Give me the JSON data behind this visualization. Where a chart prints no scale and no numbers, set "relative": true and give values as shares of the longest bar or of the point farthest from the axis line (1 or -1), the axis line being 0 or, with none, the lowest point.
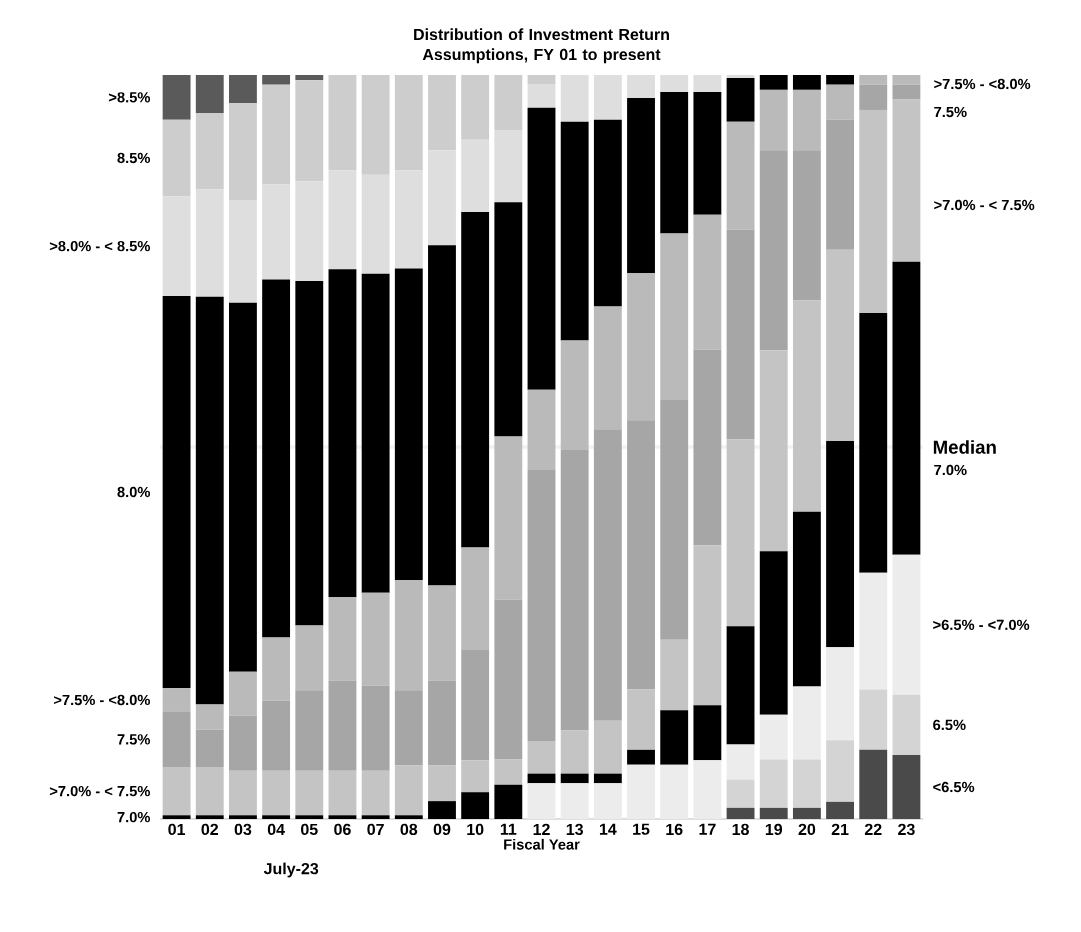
{
  "chart_data": {
    "type": "bar",
    "stacked": true,
    "relative": true,
    "title": "Distribution of Investment Return Assumptions, FY 01 to present",
    "xlabel": "Fiscal Year",
    "categories": [
      "01",
      "02",
      "03",
      "04",
      "05",
      "06",
      "07",
      "08",
      "09",
      "10",
      "11",
      "12",
      "13",
      "14",
      "15",
      "16",
      "17",
      "18",
      "19",
      "20",
      "21",
      "22",
      "23"
    ],
    "series": [
      {
        "name": "<6.5%",
        "color": "#4a4a4a",
        "values": [
          0,
          0,
          0,
          0,
          0,
          0,
          0,
          0,
          0,
          0,
          0,
          0,
          0,
          0,
          0,
          0,
          0,
          0.015,
          0.015,
          0.015,
          0.023,
          0.093,
          0.086
        ]
      },
      {
        "name": "6.5%",
        "color": "#d4d4d4",
        "values": [
          0,
          0,
          0,
          0,
          0,
          0,
          0,
          0,
          0,
          0,
          0,
          0,
          0,
          0,
          0,
          0,
          0,
          0.038,
          0.065,
          0.065,
          0.083,
          0.081,
          0.081
        ]
      },
      {
        "name": ">6.5% - <7.0%",
        "color": "#ececec",
        "values": [
          0,
          0,
          0,
          0,
          0,
          0,
          0,
          0,
          0,
          0,
          0,
          0.048,
          0.048,
          0.048,
          0.073,
          0.073,
          0.079,
          0.047,
          0.06,
          0.098,
          0.125,
          0.157,
          0.188
        ]
      },
      {
        "name": "7.0%",
        "color": "#000000",
        "values": [
          0.005,
          0.005,
          0.005,
          0.005,
          0.005,
          0.005,
          0.005,
          0.005,
          0.024,
          0.036,
          0.046,
          0.013,
          0.013,
          0.013,
          0.02,
          0.073,
          0.074,
          0.159,
          0.22,
          0.235,
          0.277,
          0.349,
          0.394
        ]
      },
      {
        "name": ">7.0% - < 7.5%",
        "color": "#c4c4c4",
        "values": [
          0.065,
          0.065,
          0.06,
          0.06,
          0.06,
          0.06,
          0.06,
          0.067,
          0.048,
          0.043,
          0.034,
          0.044,
          0.058,
          0.071,
          0.081,
          0.095,
          0.215,
          0.251,
          0.27,
          0.284,
          0.257,
          0.273,
          0.218
        ]
      },
      {
        "name": "7.5%",
        "color": "#a6a6a6",
        "values": [
          0.074,
          0.05,
          0.074,
          0.094,
          0.108,
          0.121,
          0.114,
          0.101,
          0.114,
          0.148,
          0.215,
          0.364,
          0.377,
          0.392,
          0.362,
          0.322,
          0.263,
          0.282,
          0.269,
          0.202,
          0.175,
          0.034,
          0.02
        ]
      },
      {
        "name": ">7.5% - <8.0%",
        "color": "#bababa",
        "values": [
          0.032,
          0.034,
          0.059,
          0.085,
          0.087,
          0.112,
          0.125,
          0.148,
          0.128,
          0.138,
          0.219,
          0.108,
          0.147,
          0.165,
          0.198,
          0.224,
          0.181,
          0.145,
          0.081,
          0.081,
          0.047,
          0.013,
          0.013
        ]
      },
      {
        "name": "8.0%",
        "color": "#000000",
        "values": [
          0.527,
          0.548,
          0.496,
          0.481,
          0.463,
          0.441,
          0.429,
          0.419,
          0.457,
          0.451,
          0.315,
          0.379,
          0.294,
          0.251,
          0.235,
          0.19,
          0.165,
          0.059,
          0.02,
          0.02,
          0.013,
          0,
          0
        ]
      },
      {
        "name": ">8.0% - < 8.5%",
        "color": "#dedede",
        "values": [
          0.134,
          0.144,
          0.138,
          0.128,
          0.134,
          0.133,
          0.133,
          0.132,
          0.128,
          0.097,
          0.097,
          0.031,
          0.063,
          0.06,
          0.031,
          0.023,
          0.023,
          0.004,
          0,
          0,
          0,
          0,
          0
        ]
      },
      {
        "name": "8.5%",
        "color": "#cdcdcd",
        "values": [
          0.103,
          0.103,
          0.13,
          0.134,
          0.136,
          0.128,
          0.134,
          0.128,
          0.101,
          0.087,
          0.074,
          0.013,
          0,
          0,
          0,
          0,
          0,
          0,
          0,
          0,
          0,
          0,
          0
        ]
      },
      {
        "name": ">8.5%",
        "color": "#5a5a5a",
        "values": [
          0.06,
          0.051,
          0.038,
          0.013,
          0.007,
          0,
          0,
          0,
          0,
          0,
          0,
          0,
          0,
          0,
          0,
          0,
          0,
          0,
          0,
          0,
          0,
          0,
          0
        ]
      }
    ],
    "ref_lines": [
      {
        "axis": "y",
        "value": 0.5,
        "label": "Median",
        "color": "#f2f2f2"
      }
    ],
    "annotations": [
      ">7.5% - <8.0%",
      "7.5%",
      ">7.0% - < 7.5%",
      "7.0%",
      "July-23"
    ]
  }
}
